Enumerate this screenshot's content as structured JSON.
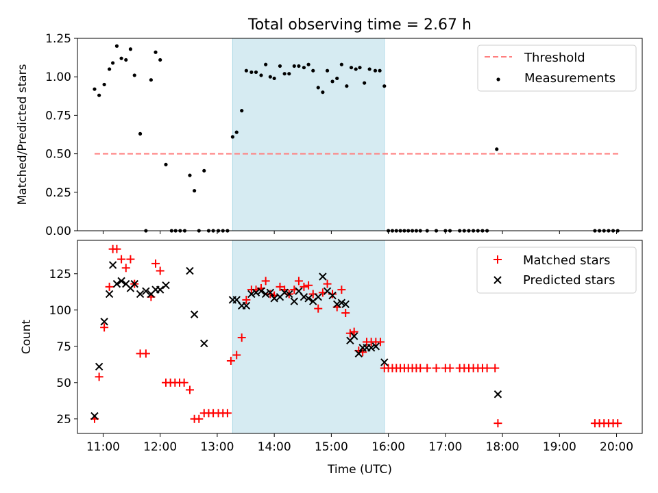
{
  "title": "Total observing time = 2.67 h",
  "colors": {
    "threshold": "#ff7f7f",
    "measurements": "#000000",
    "matched": "#ff0000",
    "predicted": "#000000",
    "span_fill": "#add8e6"
  },
  "chart_data": [
    {
      "type": "scatter",
      "ylabel": "Matched/Predicted stars",
      "ylim": [
        0,
        1.25
      ],
      "yticks": [
        0,
        0.25,
        0.5,
        0.75,
        1.0,
        1.25
      ],
      "ytick_labels": [
        "0.00",
        "0.25",
        "0.50",
        "0.75",
        "1.00",
        "1.25"
      ],
      "xlim": [
        10.55,
        20.45
      ],
      "shaded_span": [
        13.27,
        15.93
      ],
      "legend_position": "top-right",
      "threshold": {
        "name": "Threshold",
        "value": 0.5,
        "x_start": 10.85,
        "x_end": 20.05,
        "style": "dashed"
      },
      "series": [
        {
          "name": "Measurements",
          "points": [
            [
              10.85,
              0.92
            ],
            [
              10.93,
              0.88
            ],
            [
              11.02,
              0.95
            ],
            [
              11.11,
              1.05
            ],
            [
              11.17,
              1.09
            ],
            [
              11.24,
              1.2
            ],
            [
              11.32,
              1.12
            ],
            [
              11.4,
              1.11
            ],
            [
              11.48,
              1.18
            ],
            [
              11.55,
              1.01
            ],
            [
              11.65,
              0.63
            ],
            [
              11.75,
              0.0
            ],
            [
              11.84,
              0.98
            ],
            [
              11.92,
              1.16
            ],
            [
              12.0,
              1.11
            ],
            [
              12.1,
              0.43
            ],
            [
              12.2,
              0.0
            ],
            [
              12.27,
              0.0
            ],
            [
              12.35,
              0.0
            ],
            [
              12.43,
              0.0
            ],
            [
              12.52,
              0.36
            ],
            [
              12.6,
              0.26
            ],
            [
              12.68,
              0.0
            ],
            [
              12.77,
              0.39
            ],
            [
              12.85,
              0.0
            ],
            [
              12.93,
              0.0
            ],
            [
              13.02,
              0.0
            ],
            [
              13.1,
              0.0
            ],
            [
              13.18,
              0.0
            ],
            [
              13.27,
              0.61
            ],
            [
              13.34,
              0.64
            ],
            [
              13.43,
              0.78
            ],
            [
              13.51,
              1.04
            ],
            [
              13.6,
              1.03
            ],
            [
              13.68,
              1.03
            ],
            [
              13.77,
              1.01
            ],
            [
              13.85,
              1.08
            ],
            [
              13.93,
              1.0
            ],
            [
              14.0,
              0.99
            ],
            [
              14.1,
              1.07
            ],
            [
              14.18,
              1.02
            ],
            [
              14.26,
              1.02
            ],
            [
              14.35,
              1.07
            ],
            [
              14.43,
              1.07
            ],
            [
              14.52,
              1.06
            ],
            [
              14.6,
              1.08
            ],
            [
              14.68,
              1.04
            ],
            [
              14.77,
              0.93
            ],
            [
              14.85,
              0.9
            ],
            [
              14.93,
              1.04
            ],
            [
              15.02,
              0.97
            ],
            [
              15.1,
              0.99
            ],
            [
              15.18,
              1.08
            ],
            [
              15.27,
              0.94
            ],
            [
              15.35,
              1.06
            ],
            [
              15.43,
              1.05
            ],
            [
              15.5,
              1.06
            ],
            [
              15.58,
              0.96
            ],
            [
              15.67,
              1.05
            ],
            [
              15.77,
              1.04
            ],
            [
              15.85,
              1.04
            ],
            [
              15.93,
              0.94
            ],
            [
              16.0,
              0.0
            ],
            [
              16.07,
              0.0
            ],
            [
              16.14,
              0.0
            ],
            [
              16.21,
              0.0
            ],
            [
              16.28,
              0.0
            ],
            [
              16.35,
              0.0
            ],
            [
              16.42,
              0.0
            ],
            [
              16.49,
              0.0
            ],
            [
              16.56,
              0.0
            ],
            [
              16.68,
              0.0
            ],
            [
              16.84,
              0.0
            ],
            [
              17.0,
              0.0
            ],
            [
              17.08,
              0.0
            ],
            [
              17.25,
              0.0
            ],
            [
              17.33,
              0.0
            ],
            [
              17.41,
              0.0
            ],
            [
              17.49,
              0.0
            ],
            [
              17.57,
              0.0
            ],
            [
              17.65,
              0.0
            ],
            [
              17.73,
              0.0
            ],
            [
              17.9,
              0.53
            ],
            [
              19.62,
              0.0
            ],
            [
              19.7,
              0.0
            ],
            [
              19.78,
              0.0
            ],
            [
              19.86,
              0.0
            ],
            [
              19.94,
              0.0
            ],
            [
              20.02,
              0.0
            ]
          ]
        }
      ]
    },
    {
      "type": "scatter",
      "xlabel": "Time (UTC)",
      "ylabel": "Count",
      "ylim": [
        15,
        148
      ],
      "yticks": [
        25,
        50,
        75,
        100,
        125
      ],
      "xlim": [
        10.55,
        20.45
      ],
      "xticks": [
        11,
        12,
        13,
        14,
        15,
        16,
        17,
        18,
        19,
        20
      ],
      "xtick_labels": [
        "11:00",
        "12:00",
        "13:00",
        "14:00",
        "15:00",
        "16:00",
        "17:00",
        "18:00",
        "19:00",
        "20:00"
      ],
      "shaded_span": [
        13.27,
        15.93
      ],
      "legend_position": "top-right",
      "series": [
        {
          "name": "Matched stars",
          "marker": "plus",
          "points": [
            [
              10.85,
              25
            ],
            [
              10.93,
              54
            ],
            [
              11.02,
              88
            ],
            [
              11.11,
              116
            ],
            [
              11.17,
              142
            ],
            [
              11.24,
              142
            ],
            [
              11.32,
              135
            ],
            [
              11.4,
              129
            ],
            [
              11.48,
              135
            ],
            [
              11.55,
              118
            ],
            [
              11.65,
              70
            ],
            [
              11.75,
              70
            ],
            [
              11.84,
              109
            ],
            [
              11.92,
              132
            ],
            [
              12.0,
              127
            ],
            [
              12.1,
              50
            ],
            [
              12.18,
              50
            ],
            [
              12.26,
              50
            ],
            [
              12.34,
              50
            ],
            [
              12.42,
              50
            ],
            [
              12.52,
              45
            ],
            [
              12.6,
              25
            ],
            [
              12.68,
              25
            ],
            [
              12.77,
              29
            ],
            [
              12.85,
              29
            ],
            [
              12.93,
              29
            ],
            [
              13.02,
              29
            ],
            [
              13.1,
              29
            ],
            [
              13.18,
              29
            ],
            [
              13.24,
              65
            ],
            [
              13.34,
              69
            ],
            [
              13.43,
              81
            ],
            [
              13.51,
              107
            ],
            [
              13.6,
              114
            ],
            [
              13.68,
              114
            ],
            [
              13.77,
              115
            ],
            [
              13.85,
              120
            ],
            [
              13.93,
              111
            ],
            [
              14.0,
              110
            ],
            [
              14.1,
              116
            ],
            [
              14.18,
              114
            ],
            [
              14.26,
              111
            ],
            [
              14.35,
              114
            ],
            [
              14.43,
              120
            ],
            [
              14.52,
              116
            ],
            [
              14.6,
              117
            ],
            [
              14.68,
              111
            ],
            [
              14.77,
              101
            ],
            [
              14.85,
              112
            ],
            [
              14.93,
              118
            ],
            [
              15.02,
              111
            ],
            [
              15.1,
              102
            ],
            [
              15.18,
              114
            ],
            [
              15.25,
              98
            ],
            [
              15.33,
              84
            ],
            [
              15.4,
              85
            ],
            [
              15.48,
              72
            ],
            [
              15.55,
              71
            ],
            [
              15.62,
              78
            ],
            [
              15.7,
              78
            ],
            [
              15.78,
              78
            ],
            [
              15.86,
              78
            ],
            [
              15.93,
              60
            ],
            [
              16.0,
              60
            ],
            [
              16.07,
              60
            ],
            [
              16.14,
              60
            ],
            [
              16.21,
              60
            ],
            [
              16.28,
              60
            ],
            [
              16.35,
              60
            ],
            [
              16.42,
              60
            ],
            [
              16.49,
              60
            ],
            [
              16.56,
              60
            ],
            [
              16.68,
              60
            ],
            [
              16.84,
              60
            ],
            [
              17.0,
              60
            ],
            [
              17.08,
              60
            ],
            [
              17.25,
              60
            ],
            [
              17.33,
              60
            ],
            [
              17.41,
              60
            ],
            [
              17.49,
              60
            ],
            [
              17.57,
              60
            ],
            [
              17.65,
              60
            ],
            [
              17.73,
              60
            ],
            [
              17.87,
              60
            ],
            [
              17.92,
              22
            ],
            [
              19.62,
              22
            ],
            [
              19.7,
              22
            ],
            [
              19.78,
              22
            ],
            [
              19.86,
              22
            ],
            [
              19.94,
              22
            ],
            [
              20.02,
              22
            ]
          ]
        },
        {
          "name": "Predicted stars",
          "marker": "x",
          "points": [
            [
              10.85,
              27
            ],
            [
              10.93,
              61
            ],
            [
              11.02,
              92
            ],
            [
              11.11,
              111
            ],
            [
              11.17,
              131
            ],
            [
              11.24,
              118
            ],
            [
              11.32,
              120
            ],
            [
              11.4,
              118
            ],
            [
              11.48,
              115
            ],
            [
              11.55,
              118
            ],
            [
              11.65,
              111
            ],
            [
              11.75,
              113
            ],
            [
              11.84,
              111
            ],
            [
              11.92,
              114
            ],
            [
              12.0,
              114
            ],
            [
              12.1,
              117
            ],
            [
              12.52,
              127
            ],
            [
              12.6,
              97
            ],
            [
              12.77,
              77
            ],
            [
              13.27,
              107
            ],
            [
              13.34,
              107
            ],
            [
              13.43,
              103
            ],
            [
              13.51,
              103
            ],
            [
              13.6,
              111
            ],
            [
              13.68,
              112
            ],
            [
              13.77,
              113
            ],
            [
              13.85,
              111
            ],
            [
              13.93,
              112
            ],
            [
              14.0,
              108
            ],
            [
              14.1,
              109
            ],
            [
              14.18,
              112
            ],
            [
              14.26,
              111
            ],
            [
              14.35,
              106
            ],
            [
              14.43,
              113
            ],
            [
              14.52,
              109
            ],
            [
              14.6,
              108
            ],
            [
              14.68,
              106
            ],
            [
              14.77,
              109
            ],
            [
              14.85,
              123
            ],
            [
              14.93,
              113
            ],
            [
              15.02,
              110
            ],
            [
              15.1,
              104
            ],
            [
              15.18,
              105
            ],
            [
              15.25,
              104
            ],
            [
              15.33,
              79
            ],
            [
              15.4,
              82
            ],
            [
              15.48,
              70
            ],
            [
              15.55,
              74
            ],
            [
              15.62,
              74
            ],
            [
              15.7,
              74
            ],
            [
              15.78,
              75
            ],
            [
              15.93,
              64
            ],
            [
              17.92,
              42
            ]
          ]
        }
      ]
    }
  ]
}
